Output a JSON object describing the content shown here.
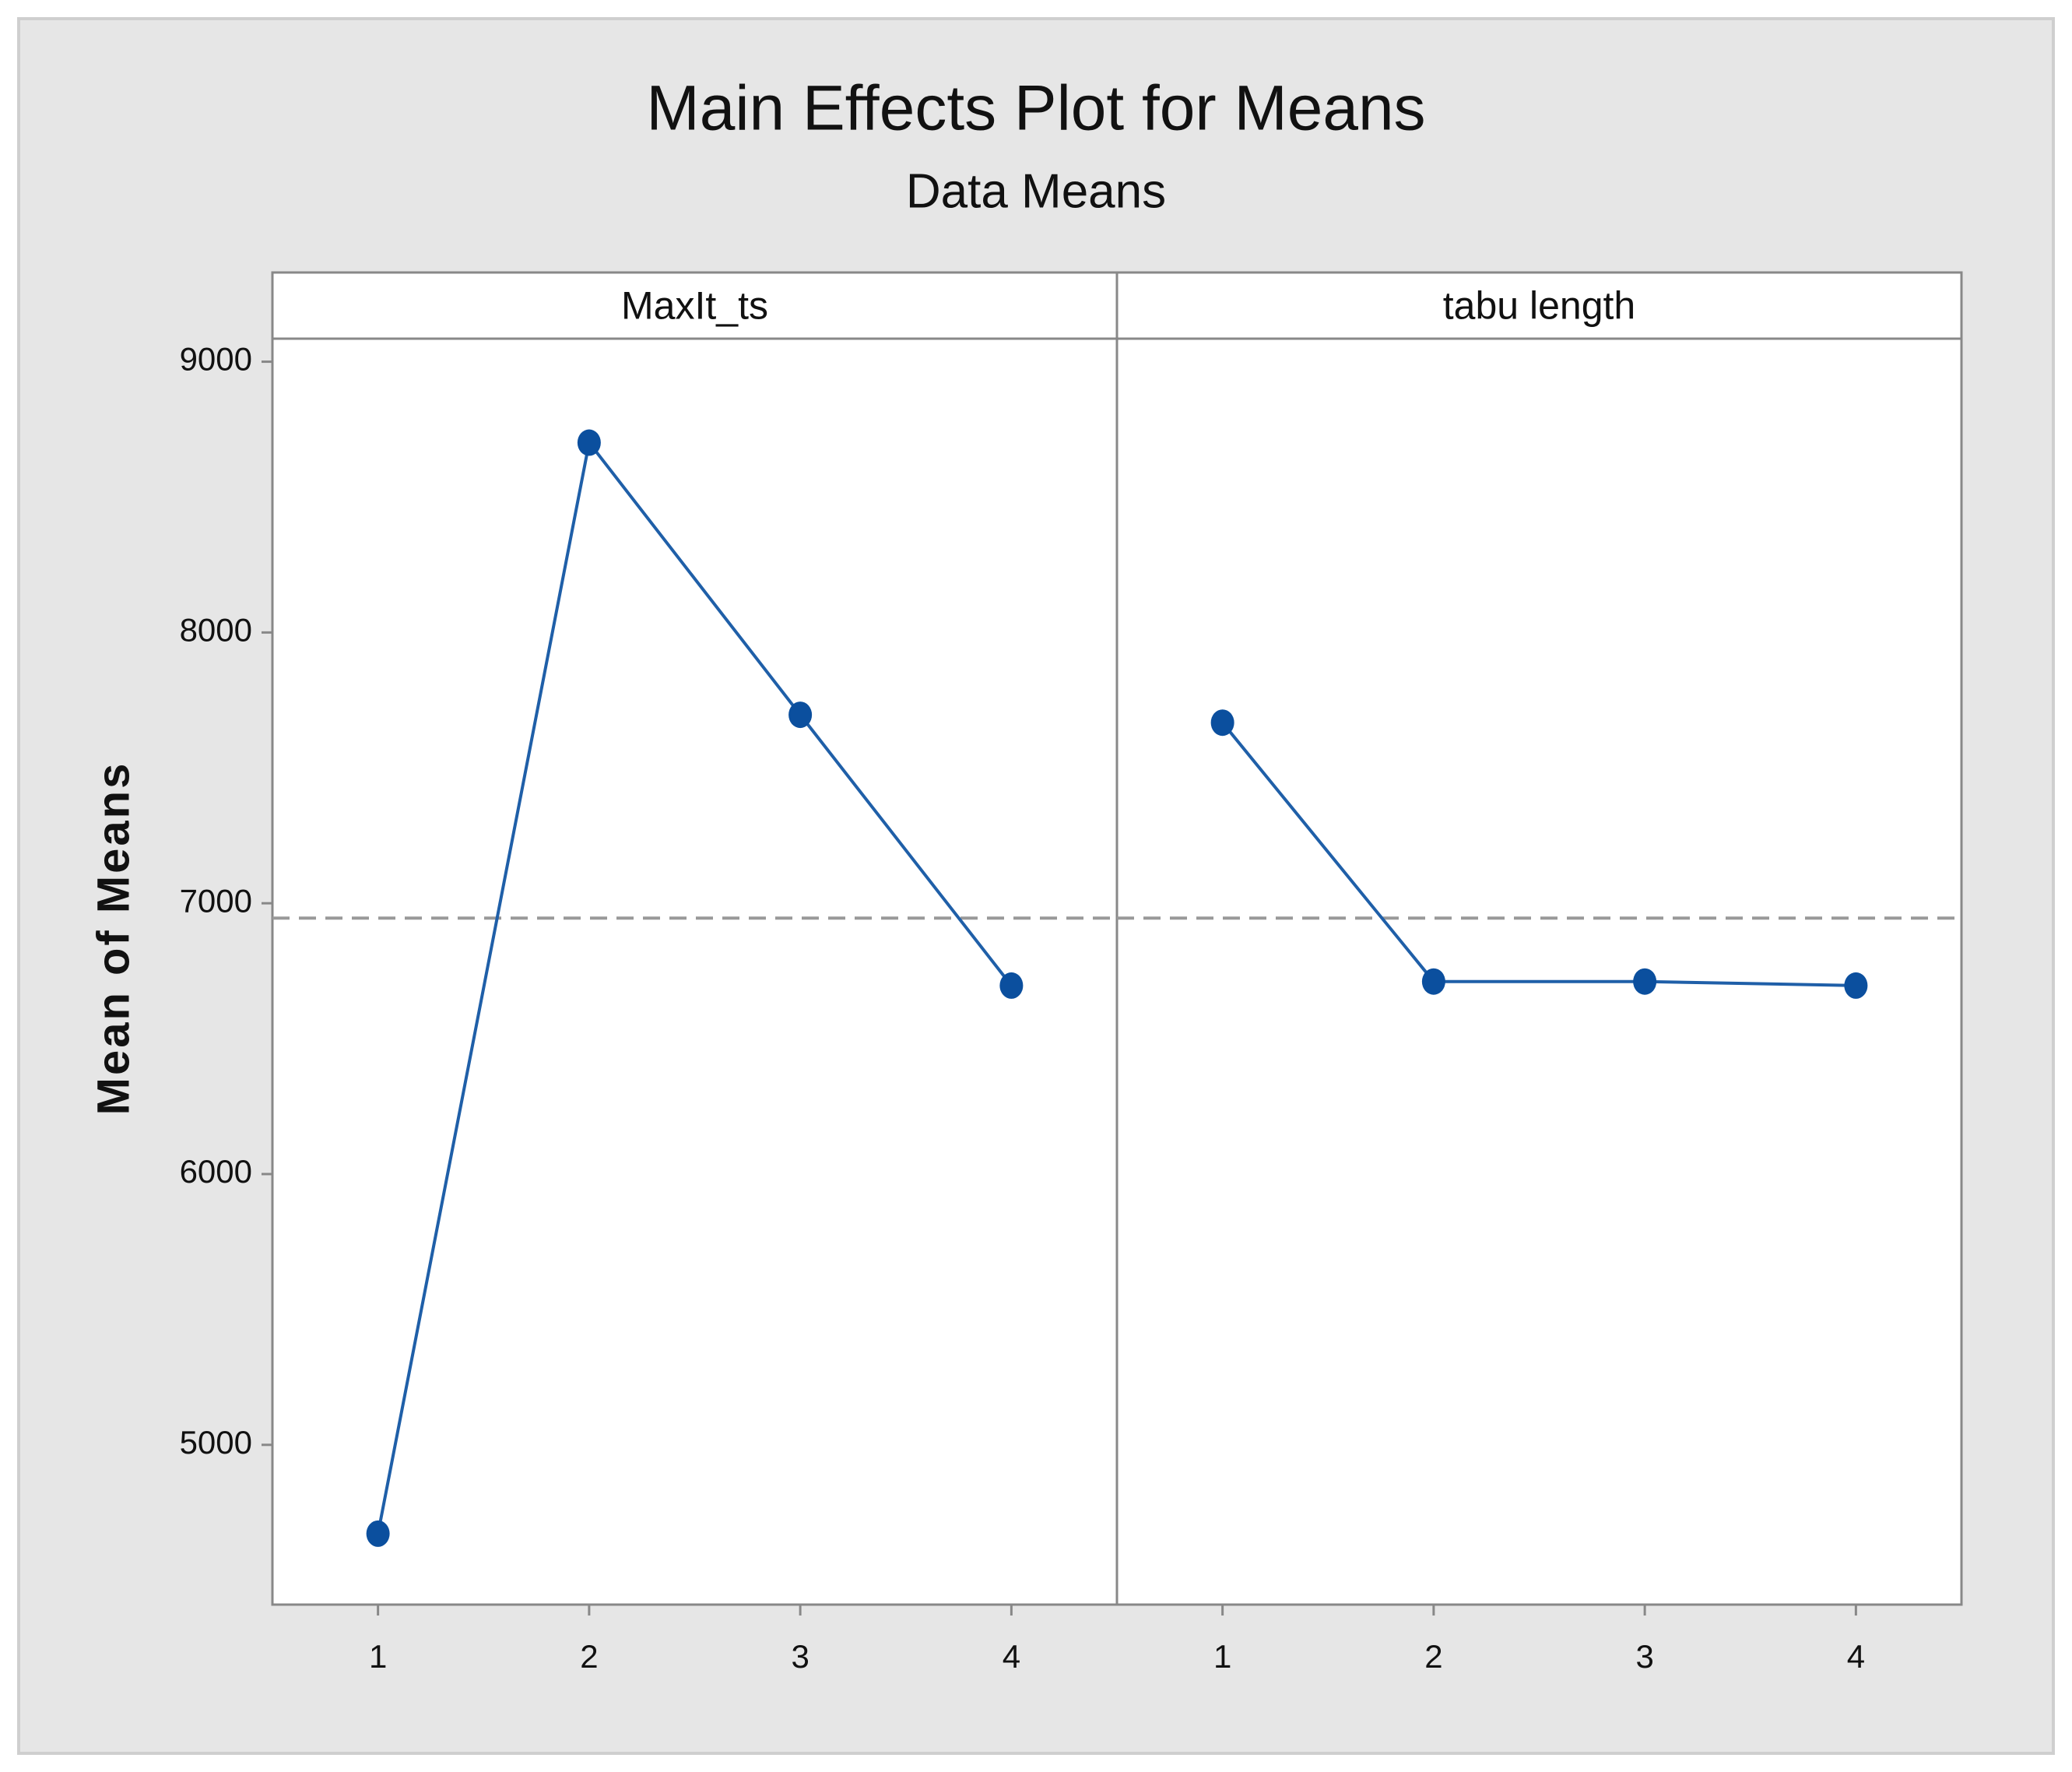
{
  "chart_data": {
    "type": "line",
    "title": "Main Effects Plot for Means",
    "subtitle": "Data Means",
    "ylabel": "Mean of Means",
    "ylim": [
      4410,
      9085
    ],
    "yticks": [
      5000,
      6000,
      7000,
      8000,
      9000
    ],
    "xlim": [
      0.5,
      4.5
    ],
    "xticks": [
      1,
      2,
      3,
      4
    ],
    "reference_line": 6945,
    "color": "#1f5fa8",
    "marker_color": "#0b4f9e",
    "panels": [
      {
        "name": "MaxIt_ts",
        "x": [
          1,
          2,
          3,
          4
        ],
        "values": [
          4672,
          8701,
          7696,
          6696
        ]
      },
      {
        "name": "tabu length",
        "x": [
          1,
          2,
          3,
          4
        ],
        "values": [
          7667,
          6711,
          6711,
          6696
        ]
      }
    ]
  }
}
